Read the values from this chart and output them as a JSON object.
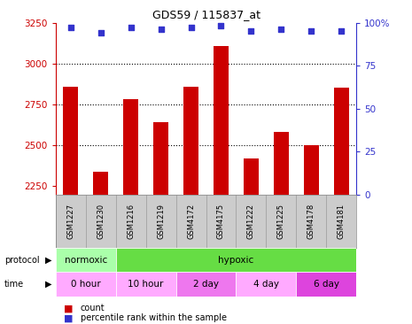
{
  "title": "GDS59 / 115837_at",
  "samples": [
    "GSM1227",
    "GSM1230",
    "GSM1216",
    "GSM1219",
    "GSM4172",
    "GSM4175",
    "GSM1222",
    "GSM1225",
    "GSM4178",
    "GSM4181"
  ],
  "counts": [
    2860,
    2340,
    2780,
    2640,
    2860,
    3105,
    2420,
    2580,
    2500,
    2855
  ],
  "percentiles": [
    97,
    94,
    97,
    96,
    97,
    98,
    95,
    96,
    95,
    95
  ],
  "ylim_left": [
    2200,
    3250
  ],
  "ylim_right": [
    0,
    100
  ],
  "yticks_left": [
    2250,
    2500,
    2750,
    3000,
    3250
  ],
  "yticks_right": [
    0,
    25,
    50,
    75,
    100
  ],
  "ytick_right_labels": [
    "0",
    "25",
    "50",
    "75",
    "100%"
  ],
  "bar_color": "#cc0000",
  "dot_color": "#3333cc",
  "gridline_vals": [
    2500,
    2750,
    3000
  ],
  "protocol_labels": [
    {
      "label": "normoxic",
      "start": 0,
      "end": 2,
      "color": "#aaffaa"
    },
    {
      "label": "hypoxic",
      "start": 2,
      "end": 10,
      "color": "#66dd44"
    }
  ],
  "time_labels": [
    {
      "label": "0 hour",
      "start": 0,
      "end": 2,
      "color": "#ffaaff"
    },
    {
      "label": "10 hour",
      "start": 2,
      "end": 4,
      "color": "#ffaaff"
    },
    {
      "label": "2 day",
      "start": 4,
      "end": 6,
      "color": "#ee77ee"
    },
    {
      "label": "4 day",
      "start": 6,
      "end": 8,
      "color": "#ffaaff"
    },
    {
      "label": "6 day",
      "start": 8,
      "end": 10,
      "color": "#dd44dd"
    }
  ],
  "left_axis_color": "#cc0000",
  "right_axis_color": "#3333cc",
  "background_color": "#ffffff",
  "label_count": "count",
  "label_percentile": "percentile rank within the sample",
  "sample_bg_color": "#cccccc",
  "sample_divider_color": "#999999"
}
